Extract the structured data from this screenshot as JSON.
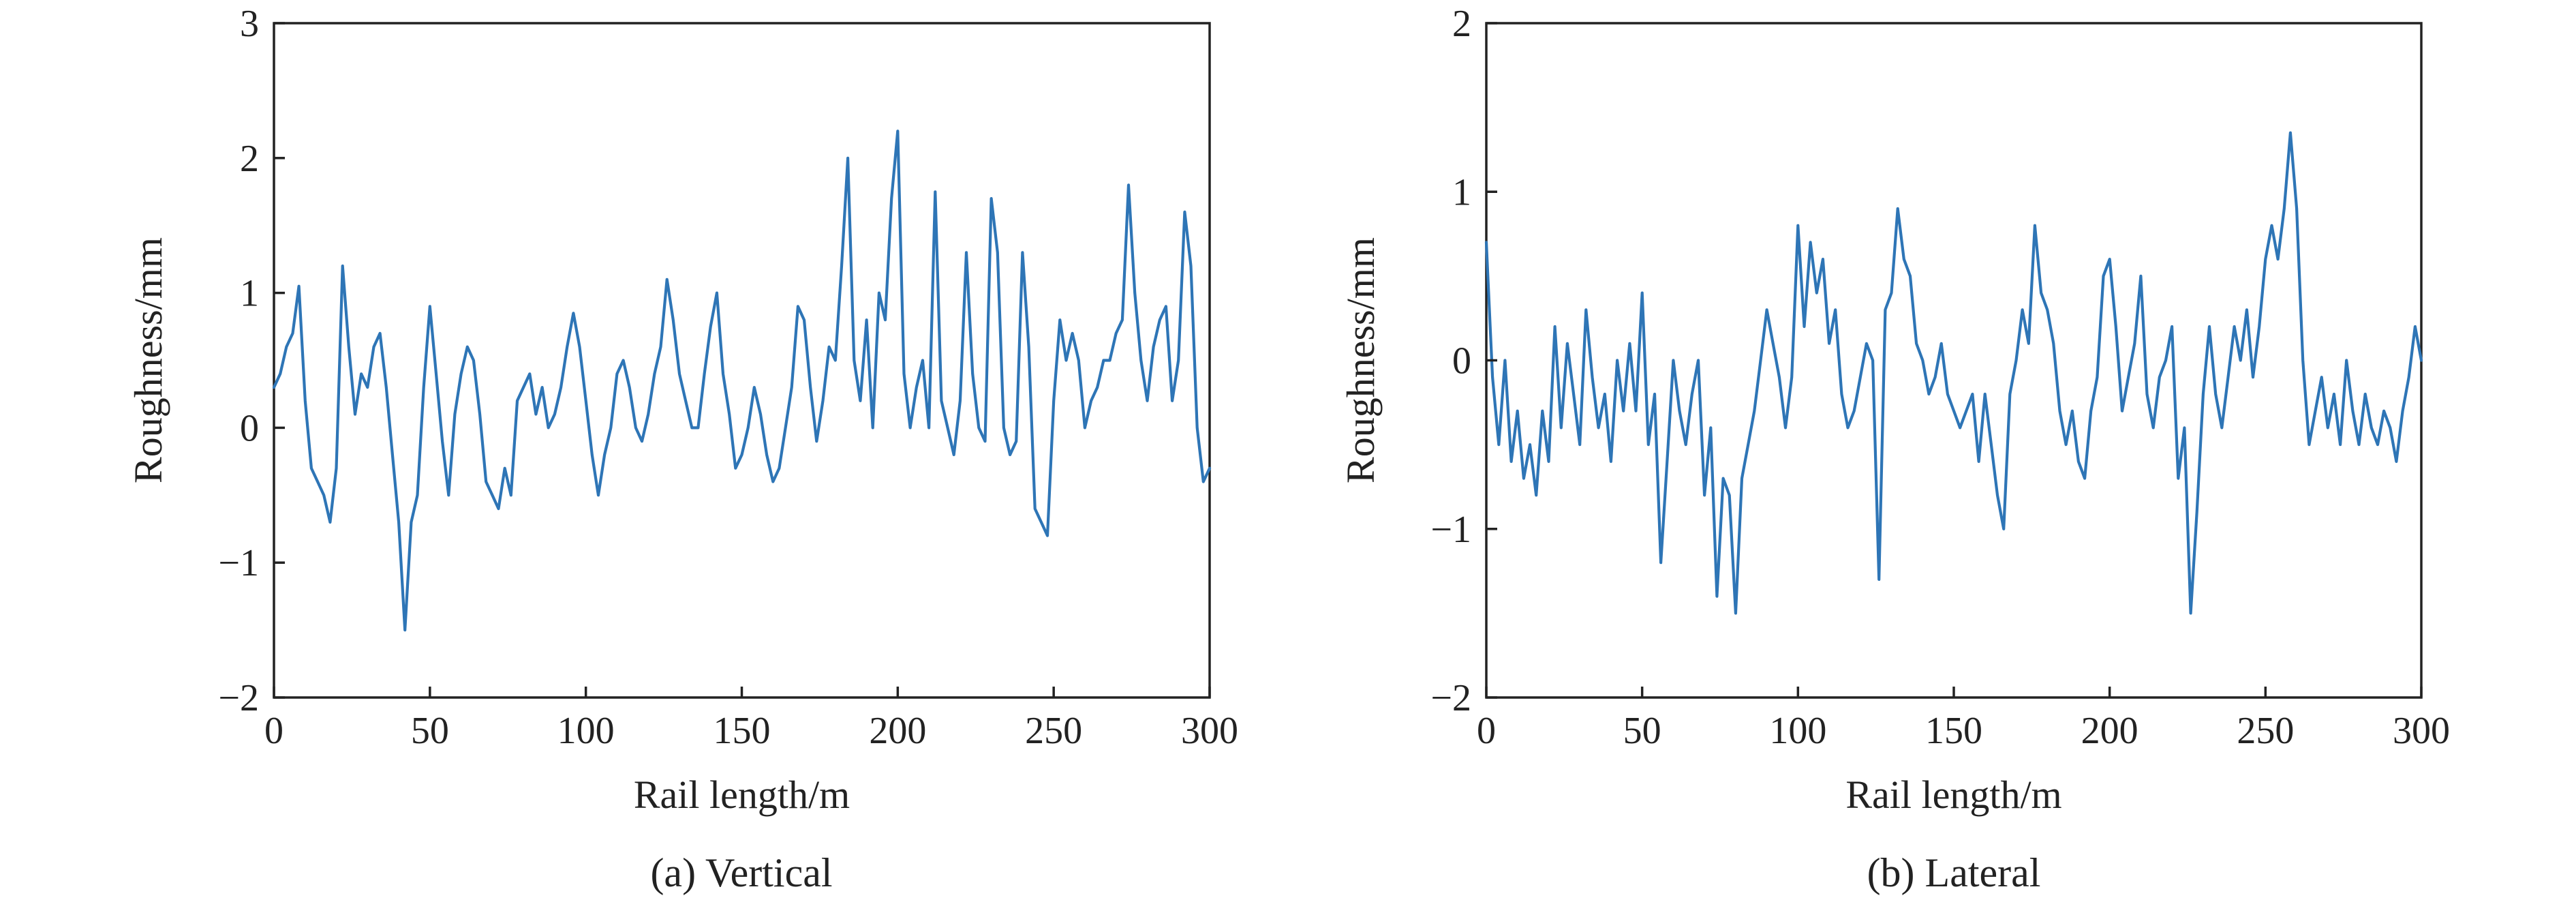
{
  "chart_data": [
    {
      "type": "line",
      "caption": "(a) Vertical",
      "title": "",
      "xlabel": "Rail length/m",
      "ylabel": "Roughness/mm",
      "xlim": [
        0,
        300
      ],
      "ylim": [
        -2,
        3
      ],
      "xticks": [
        0,
        50,
        100,
        150,
        200,
        250,
        300
      ],
      "yticks": [
        -2,
        -1,
        0,
        1,
        2,
        3
      ],
      "xtick_labels": [
        "0",
        "50",
        "100",
        "150",
        "200",
        "250",
        "300"
      ],
      "ytick_labels": [
        "−2",
        "−1",
        "0",
        "1",
        "2",
        "3"
      ],
      "grid": false,
      "color": "#2e75b6",
      "series": [
        {
          "x": [
            0,
            2,
            4,
            6,
            8,
            10,
            12,
            14,
            16,
            18,
            20,
            22,
            24,
            26,
            28,
            30,
            32,
            34,
            36,
            38,
            40,
            42,
            44,
            46,
            48,
            50,
            52,
            54,
            56,
            58,
            60,
            62,
            64,
            66,
            68,
            70,
            72,
            74,
            76,
            78,
            80,
            82,
            84,
            86,
            88,
            90,
            92,
            94,
            96,
            98,
            100,
            102,
            104,
            106,
            108,
            110,
            112,
            114,
            116,
            118,
            120,
            122,
            124,
            126,
            128,
            130,
            132,
            134,
            136,
            138,
            140,
            142,
            144,
            146,
            148,
            150,
            152,
            154,
            156,
            158,
            160,
            162,
            164,
            166,
            168,
            170,
            172,
            174,
            176,
            178,
            180,
            182,
            184,
            186,
            188,
            190,
            192,
            194,
            196,
            198,
            200,
            202,
            204,
            206,
            208,
            210,
            212,
            214,
            216,
            218,
            220,
            222,
            224,
            226,
            228,
            230,
            232,
            234,
            236,
            238,
            240,
            242,
            244,
            246,
            248,
            250,
            252,
            254,
            256,
            258,
            260,
            262,
            264,
            266,
            268,
            270,
            272,
            274,
            276,
            278,
            280,
            282,
            284,
            286,
            288,
            290,
            292,
            294,
            296,
            298,
            300
          ],
          "y": [
            0.3,
            0.4,
            0.6,
            0.7,
            1.05,
            0.2,
            -0.3,
            -0.4,
            -0.5,
            -0.7,
            -0.3,
            1.2,
            0.6,
            0.1,
            0.4,
            0.3,
            0.6,
            0.7,
            0.3,
            -0.2,
            -0.7,
            -1.5,
            -0.7,
            -0.5,
            0.3,
            0.9,
            0.4,
            -0.1,
            -0.5,
            0.1,
            0.4,
            0.6,
            0.5,
            0.1,
            -0.4,
            -0.5,
            -0.6,
            -0.3,
            -0.5,
            0.2,
            0.3,
            0.4,
            0.1,
            0.3,
            0.0,
            0.1,
            0.3,
            0.6,
            0.85,
            0.6,
            0.2,
            -0.2,
            -0.5,
            -0.2,
            0.0,
            0.4,
            0.5,
            0.3,
            0.0,
            -0.1,
            0.1,
            0.4,
            0.6,
            1.1,
            0.8,
            0.4,
            0.2,
            0.0,
            0.0,
            0.4,
            0.75,
            1.0,
            0.4,
            0.1,
            -0.3,
            -0.2,
            0.0,
            0.3,
            0.1,
            -0.2,
            -0.4,
            -0.3,
            0.0,
            0.3,
            0.9,
            0.8,
            0.3,
            -0.1,
            0.2,
            0.6,
            0.5,
            1.2,
            2.0,
            0.5,
            0.2,
            0.8,
            0.0,
            1.0,
            0.8,
            1.7,
            2.2,
            0.4,
            0.0,
            0.3,
            0.5,
            0.0,
            1.75,
            0.2,
            0.0,
            -0.2,
            0.2,
            1.3,
            0.4,
            0.0,
            -0.1,
            1.7,
            1.3,
            0.0,
            -0.2,
            -0.1,
            1.3,
            0.6,
            -0.6,
            -0.7,
            -0.8,
            0.2,
            0.8,
            0.5,
            0.7,
            0.5,
            0.0,
            0.2,
            0.3,
            0.5,
            0.5,
            0.7,
            0.8,
            1.8,
            1.0,
            0.5,
            0.2,
            0.6,
            0.8,
            0.9,
            0.2,
            0.5,
            1.6,
            1.2,
            0.0,
            -0.4,
            -0.3
          ]
        }
      ]
    },
    {
      "type": "line",
      "caption": "(b) Lateral",
      "title": "",
      "xlabel": "Rail length/m",
      "ylabel": "Roughness/mm",
      "xlim": [
        0,
        300
      ],
      "ylim": [
        -2,
        2
      ],
      "xticks": [
        0,
        50,
        100,
        150,
        200,
        250,
        300
      ],
      "yticks": [
        -2,
        -1,
        0,
        1,
        2
      ],
      "xtick_labels": [
        "0",
        "50",
        "100",
        "150",
        "200",
        "250",
        "300"
      ],
      "ytick_labels": [
        "−2",
        "−1",
        "0",
        "1",
        "2"
      ],
      "grid": false,
      "color": "#2e75b6",
      "series": [
        {
          "x": [
            0,
            2,
            4,
            6,
            8,
            10,
            12,
            14,
            16,
            18,
            20,
            22,
            24,
            26,
            28,
            30,
            32,
            34,
            36,
            38,
            40,
            42,
            44,
            46,
            48,
            50,
            52,
            54,
            56,
            58,
            60,
            62,
            64,
            66,
            68,
            70,
            72,
            74,
            76,
            78,
            80,
            82,
            84,
            86,
            88,
            90,
            92,
            94,
            96,
            98,
            100,
            102,
            104,
            106,
            108,
            110,
            112,
            114,
            116,
            118,
            120,
            122,
            124,
            126,
            128,
            130,
            132,
            134,
            136,
            138,
            140,
            142,
            144,
            146,
            148,
            150,
            152,
            154,
            156,
            158,
            160,
            162,
            164,
            166,
            168,
            170,
            172,
            174,
            176,
            178,
            180,
            182,
            184,
            186,
            188,
            190,
            192,
            194,
            196,
            198,
            200,
            202,
            204,
            206,
            208,
            210,
            212,
            214,
            216,
            218,
            220,
            222,
            224,
            226,
            228,
            230,
            232,
            234,
            236,
            238,
            240,
            242,
            244,
            246,
            248,
            250,
            252,
            254,
            256,
            258,
            260,
            262,
            264,
            266,
            268,
            270,
            272,
            274,
            276,
            278,
            280,
            282,
            284,
            286,
            288,
            290,
            292,
            294,
            296,
            298,
            300
          ],
          "y": [
            0.7,
            -0.1,
            -0.5,
            0.0,
            -0.6,
            -0.3,
            -0.7,
            -0.5,
            -0.8,
            -0.3,
            -0.6,
            0.2,
            -0.4,
            0.1,
            -0.2,
            -0.5,
            0.3,
            -0.1,
            -0.4,
            -0.2,
            -0.6,
            0.0,
            -0.3,
            0.1,
            -0.3,
            0.4,
            -0.5,
            -0.2,
            -1.2,
            -0.6,
            0.0,
            -0.3,
            -0.5,
            -0.2,
            0.0,
            -0.8,
            -0.4,
            -1.4,
            -0.7,
            -0.8,
            -1.5,
            -0.7,
            -0.5,
            -0.3,
            0.0,
            0.3,
            0.1,
            -0.1,
            -0.4,
            -0.1,
            0.8,
            0.2,
            0.7,
            0.4,
            0.6,
            0.1,
            0.3,
            -0.2,
            -0.4,
            -0.3,
            -0.1,
            0.1,
            0.0,
            -1.3,
            0.3,
            0.4,
            0.9,
            0.6,
            0.5,
            0.1,
            0.0,
            -0.2,
            -0.1,
            0.1,
            -0.2,
            -0.3,
            -0.4,
            -0.3,
            -0.2,
            -0.6,
            -0.2,
            -0.5,
            -0.8,
            -1.0,
            -0.2,
            0.0,
            0.3,
            0.1,
            0.8,
            0.4,
            0.3,
            0.1,
            -0.3,
            -0.5,
            -0.3,
            -0.6,
            -0.7,
            -0.3,
            -0.1,
            0.5,
            0.6,
            0.2,
            -0.3,
            -0.1,
            0.1,
            0.5,
            -0.2,
            -0.4,
            -0.1,
            0.0,
            0.2,
            -0.7,
            -0.4,
            -1.5,
            -0.9,
            -0.2,
            0.2,
            -0.2,
            -0.4,
            -0.1,
            0.2,
            0.0,
            0.3,
            -0.1,
            0.2,
            0.6,
            0.8,
            0.6,
            0.9,
            1.35,
            0.9,
            0.0,
            -0.5,
            -0.3,
            -0.1,
            -0.4,
            -0.2,
            -0.5,
            0.0,
            -0.3,
            -0.5,
            -0.2,
            -0.4,
            -0.5,
            -0.3,
            -0.4,
            -0.6,
            -0.3,
            -0.1,
            0.2,
            0.0
          ]
        }
      ]
    }
  ]
}
